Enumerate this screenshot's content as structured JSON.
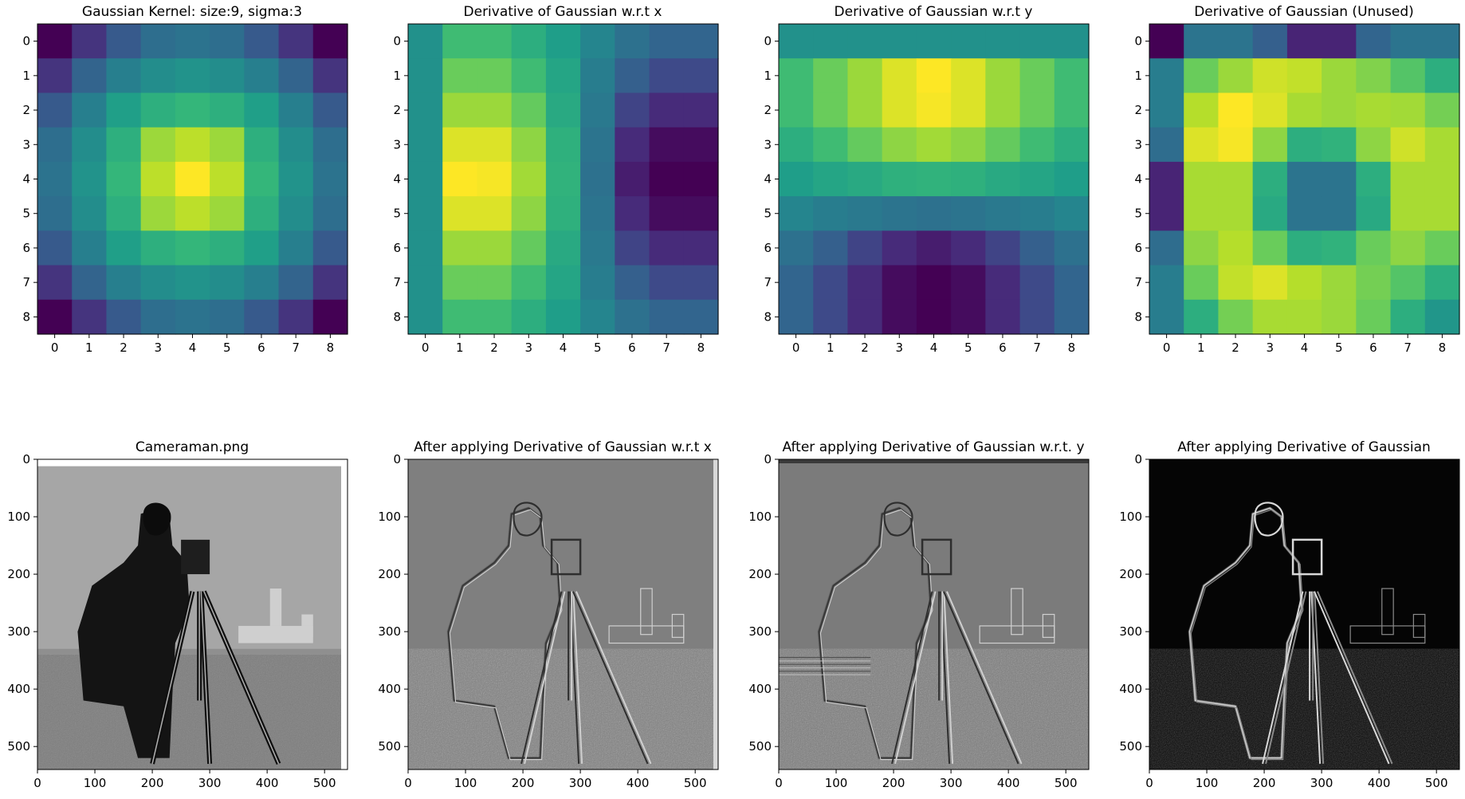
{
  "chart_data": [
    {
      "type": "heatmap",
      "title": "Gaussian Kernel: size:9, sigma:3",
      "colormap": "viridis",
      "xticks": [
        "0",
        "1",
        "2",
        "3",
        "4",
        "5",
        "6",
        "7",
        "8"
      ],
      "yticks": [
        "0",
        "1",
        "2",
        "3",
        "4",
        "5",
        "6",
        "7",
        "8"
      ],
      "values": [
        [
          0.0,
          0.15,
          0.28,
          0.36,
          0.38,
          0.36,
          0.28,
          0.15,
          0.0
        ],
        [
          0.15,
          0.32,
          0.43,
          0.49,
          0.51,
          0.49,
          0.43,
          0.32,
          0.15
        ],
        [
          0.28,
          0.43,
          0.56,
          0.63,
          0.66,
          0.63,
          0.56,
          0.43,
          0.28
        ],
        [
          0.36,
          0.49,
          0.63,
          0.85,
          0.9,
          0.85,
          0.63,
          0.49,
          0.36
        ],
        [
          0.38,
          0.51,
          0.66,
          0.9,
          1.0,
          0.9,
          0.66,
          0.51,
          0.38
        ],
        [
          0.36,
          0.49,
          0.63,
          0.85,
          0.9,
          0.85,
          0.63,
          0.49,
          0.36
        ],
        [
          0.28,
          0.43,
          0.56,
          0.63,
          0.66,
          0.63,
          0.56,
          0.43,
          0.28
        ],
        [
          0.15,
          0.32,
          0.43,
          0.49,
          0.51,
          0.49,
          0.43,
          0.32,
          0.15
        ],
        [
          0.0,
          0.15,
          0.28,
          0.36,
          0.38,
          0.36,
          0.28,
          0.15,
          0.0
        ]
      ]
    },
    {
      "type": "heatmap",
      "title": "Derivative of Gaussian w.r.t x",
      "colormap": "viridis",
      "xticks": [
        "0",
        "1",
        "2",
        "3",
        "4",
        "5",
        "6",
        "7",
        "8"
      ],
      "yticks": [
        "0",
        "1",
        "2",
        "3",
        "4",
        "5",
        "6",
        "7",
        "8"
      ],
      "values": [
        [
          0.5,
          0.68,
          0.68,
          0.62,
          0.55,
          0.45,
          0.37,
          0.32,
          0.32
        ],
        [
          0.5,
          0.76,
          0.76,
          0.68,
          0.58,
          0.42,
          0.3,
          0.22,
          0.22
        ],
        [
          0.5,
          0.84,
          0.84,
          0.75,
          0.6,
          0.4,
          0.2,
          0.12,
          0.12
        ],
        [
          0.5,
          0.94,
          0.94,
          0.82,
          0.63,
          0.38,
          0.12,
          0.03,
          0.03
        ],
        [
          0.5,
          0.99,
          0.98,
          0.85,
          0.64,
          0.37,
          0.08,
          0.0,
          0.0
        ],
        [
          0.5,
          0.94,
          0.94,
          0.82,
          0.63,
          0.38,
          0.12,
          0.03,
          0.03
        ],
        [
          0.5,
          0.84,
          0.84,
          0.75,
          0.6,
          0.4,
          0.2,
          0.12,
          0.12
        ],
        [
          0.5,
          0.76,
          0.76,
          0.68,
          0.58,
          0.42,
          0.3,
          0.22,
          0.22
        ],
        [
          0.5,
          0.68,
          0.68,
          0.62,
          0.55,
          0.45,
          0.37,
          0.32,
          0.32
        ]
      ]
    },
    {
      "type": "heatmap",
      "title": "Derivative of Gaussian w.r.t y",
      "colormap": "viridis",
      "xticks": [
        "0",
        "1",
        "2",
        "3",
        "4",
        "5",
        "6",
        "7",
        "8"
      ],
      "yticks": [
        "0",
        "1",
        "2",
        "3",
        "4",
        "5",
        "6",
        "7",
        "8"
      ],
      "values": [
        [
          0.5,
          0.5,
          0.5,
          0.5,
          0.5,
          0.5,
          0.5,
          0.5,
          0.5
        ],
        [
          0.68,
          0.76,
          0.84,
          0.94,
          0.99,
          0.94,
          0.84,
          0.76,
          0.68
        ],
        [
          0.68,
          0.76,
          0.84,
          0.94,
          0.98,
          0.94,
          0.84,
          0.76,
          0.68
        ],
        [
          0.62,
          0.68,
          0.75,
          0.82,
          0.85,
          0.82,
          0.75,
          0.68,
          0.62
        ],
        [
          0.55,
          0.58,
          0.6,
          0.63,
          0.64,
          0.63,
          0.6,
          0.58,
          0.55
        ],
        [
          0.45,
          0.42,
          0.4,
          0.38,
          0.37,
          0.38,
          0.4,
          0.42,
          0.45
        ],
        [
          0.37,
          0.3,
          0.2,
          0.12,
          0.08,
          0.12,
          0.2,
          0.3,
          0.37
        ],
        [
          0.32,
          0.22,
          0.12,
          0.03,
          0.0,
          0.03,
          0.12,
          0.22,
          0.32
        ],
        [
          0.32,
          0.22,
          0.12,
          0.03,
          0.0,
          0.03,
          0.12,
          0.22,
          0.32
        ]
      ]
    },
    {
      "type": "heatmap",
      "title": "Derivative of Gaussian (Unused)",
      "colormap": "viridis",
      "xticks": [
        "0",
        "1",
        "2",
        "3",
        "4",
        "5",
        "6",
        "7",
        "8"
      ],
      "yticks": [
        "0",
        "1",
        "2",
        "3",
        "4",
        "5",
        "6",
        "7",
        "8"
      ],
      "values": [
        [
          0.0,
          0.38,
          0.38,
          0.3,
          0.1,
          0.1,
          0.32,
          0.38,
          0.38
        ],
        [
          0.42,
          0.76,
          0.84,
          0.92,
          0.9,
          0.84,
          0.8,
          0.72,
          0.62
        ],
        [
          0.42,
          0.88,
          0.99,
          0.94,
          0.86,
          0.84,
          0.86,
          0.85,
          0.78
        ],
        [
          0.35,
          0.94,
          0.98,
          0.82,
          0.62,
          0.64,
          0.82,
          0.92,
          0.86
        ],
        [
          0.1,
          0.86,
          0.86,
          0.62,
          0.38,
          0.38,
          0.62,
          0.86,
          0.86
        ],
        [
          0.1,
          0.86,
          0.86,
          0.6,
          0.38,
          0.38,
          0.6,
          0.86,
          0.86
        ],
        [
          0.35,
          0.82,
          0.88,
          0.76,
          0.62,
          0.64,
          0.76,
          0.82,
          0.76
        ],
        [
          0.42,
          0.76,
          0.9,
          0.94,
          0.88,
          0.84,
          0.78,
          0.72,
          0.62
        ],
        [
          0.42,
          0.62,
          0.78,
          0.86,
          0.86,
          0.84,
          0.76,
          0.62,
          0.52
        ]
      ]
    },
    {
      "type": "image",
      "title": "Cameraman.png",
      "colormap": "gray",
      "xlim": [
        0,
        540
      ],
      "ylim": [
        540,
        0
      ],
      "xticks": [
        0,
        100,
        200,
        300,
        400,
        500
      ],
      "yticks": [
        0,
        100,
        200,
        300,
        400,
        500
      ]
    },
    {
      "type": "image",
      "title": "After applying Derivative of Gaussian w.r.t x",
      "colormap": "gray",
      "xlim": [
        0,
        540
      ],
      "ylim": [
        540,
        0
      ],
      "xticks": [
        0,
        100,
        200,
        300,
        400,
        500
      ],
      "yticks": [
        0,
        100,
        200,
        300,
        400,
        500
      ]
    },
    {
      "type": "image",
      "title": "After applying Derivative of Gaussian w.r.t. y",
      "colormap": "gray",
      "xlim": [
        0,
        540
      ],
      "ylim": [
        540,
        0
      ],
      "xticks": [
        0,
        100,
        200,
        300,
        400,
        500
      ],
      "yticks": [
        0,
        100,
        200,
        300,
        400,
        500
      ]
    },
    {
      "type": "image",
      "title": "After applying Derivative of Gaussian",
      "colormap": "gray",
      "xlim": [
        0,
        540
      ],
      "ylim": [
        540,
        0
      ],
      "xticks": [
        0,
        100,
        200,
        300,
        400,
        500
      ],
      "yticks": [
        0,
        100,
        200,
        300,
        400,
        500
      ]
    }
  ]
}
